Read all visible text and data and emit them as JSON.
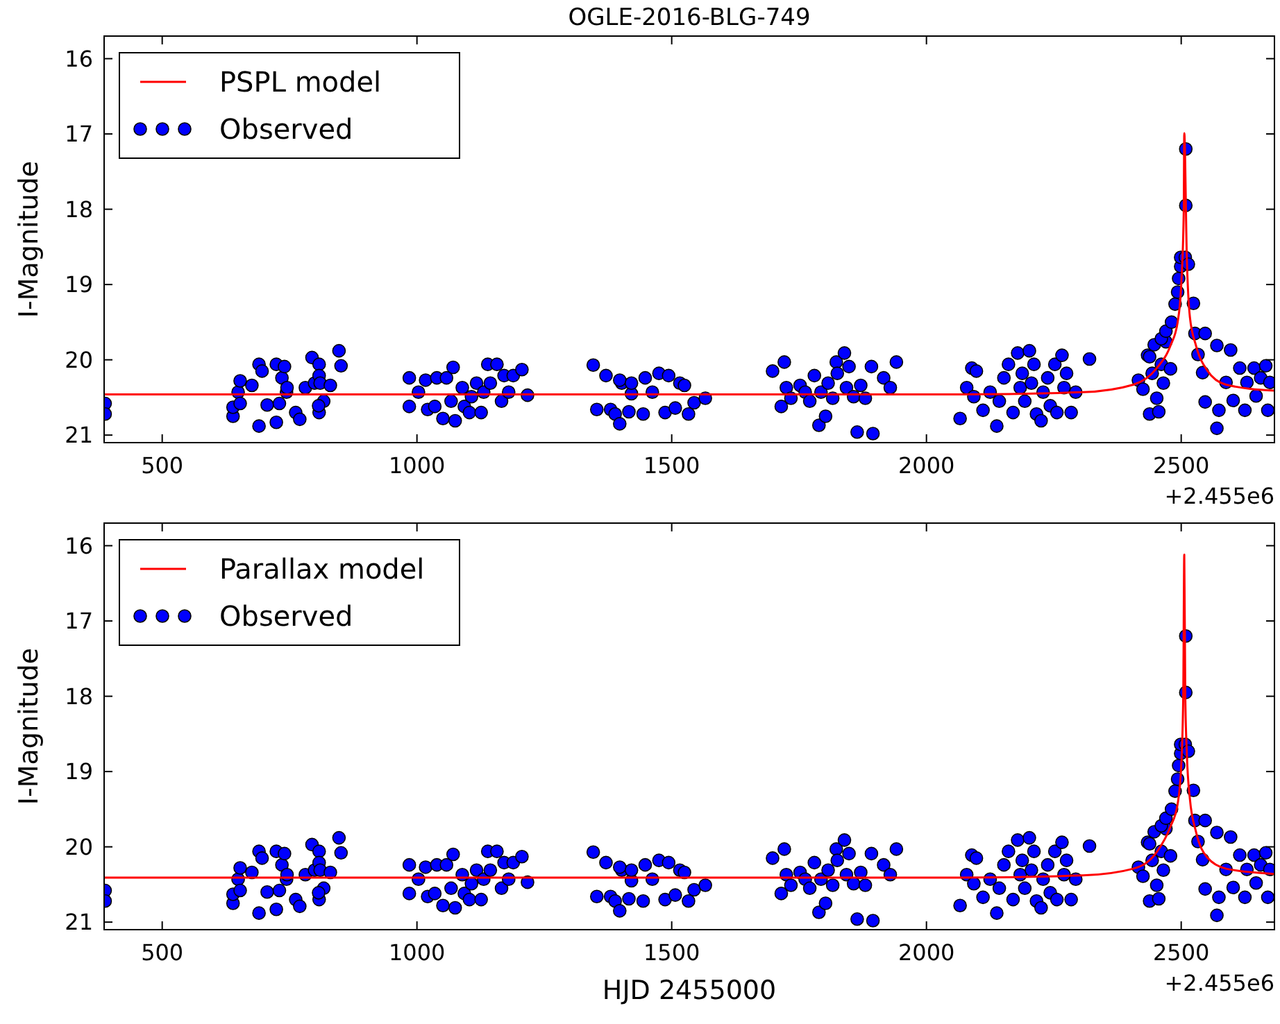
{
  "chart_data": [
    {
      "type": "scatter",
      "title": "OGLE-2016-BLG-749",
      "ylabel": "I-Magnitude",
      "annotations": [
        "+2.455e6"
      ],
      "xlim": [
        386,
        2683
      ],
      "ylim": [
        21.1,
        15.7
      ],
      "xticks": [
        500,
        1000,
        1500,
        2000,
        2500
      ],
      "yticks": [
        16,
        17,
        18,
        19,
        20,
        21
      ],
      "legend": "top left",
      "series": [
        {
          "name": "Observed",
          "type": "scatter",
          "marker": "circle",
          "color": "#0000ff",
          "x": [
            388,
            388,
            639,
            639,
            649,
            653,
            653,
            676,
            690,
            690,
            696,
            706,
            724,
            724,
            735,
            740,
            744,
            730,
            745,
            762,
            770,
            781,
            794,
            799,
            808,
            808,
            808,
            810,
            817,
            830,
            847,
            851,
            807,
            985,
            985,
            1003,
            1017,
            1021,
            1035,
            1039,
            1051,
            1058,
            1067,
            1071,
            1075,
            1089,
            1093,
            1103,
            1107,
            1117,
            1126,
            1131,
            1139,
            1144,
            1157,
            1166,
            1171,
            1180,
            1189,
            1206,
            1217,
            1346,
            1353,
            1371,
            1380,
            1389,
            1398,
            1402,
            1416,
            1421,
            1398,
            1421,
            1448,
            1444,
            1462,
            1475,
            1487,
            1494,
            1507,
            1516,
            1525,
            1533,
            1544,
            1566,
            1698,
            1721,
            1715,
            1725,
            1734,
            1752,
            1762,
            1771,
            1780,
            1789,
            1793,
            1802,
            1807,
            1816,
            1823,
            1825,
            1839,
            1843,
            1848,
            1857,
            1864,
            1871,
            1880,
            1892,
            1895,
            1916,
            1929,
            1941,
            2066,
            2089,
            2098,
            2079,
            2093,
            2111,
            2125,
            2138,
            2143,
            2152,
            2161,
            2170,
            2179,
            2184,
            2188,
            2193,
            2202,
            2206,
            2211,
            2216,
            2225,
            2229,
            2238,
            2243,
            2252,
            2256,
            2266,
            2270,
            2275,
            2284,
            2293,
            2320,
            2416,
            2425,
            2434,
            2438,
            2443,
            2452,
            2456,
            2461,
            2465,
            2470,
            2479,
            2438,
            2447,
            2461,
            2470,
            2481,
            2488,
            2493,
            2495,
            2499,
            2499,
            2508,
            2514,
            2509,
            2509,
            2524,
            2527,
            2547,
            2533,
            2542,
            2547,
            2570,
            2570,
            2574,
            2588,
            2597,
            2602,
            2615,
            2625,
            2629,
            2643,
            2647,
            2656,
            2666,
            2670,
            2674
          ],
          "values": [
            20.58,
            20.72,
            20.75,
            20.63,
            20.43,
            20.58,
            20.28,
            20.34,
            20.06,
            20.88,
            20.15,
            20.6,
            20.06,
            20.83,
            20.24,
            20.09,
            20.43,
            20.58,
            20.37,
            20.7,
            20.79,
            20.37,
            19.97,
            20.31,
            20.06,
            20.21,
            20.7,
            20.31,
            20.55,
            20.34,
            19.88,
            20.08,
            20.61,
            20.24,
            20.62,
            20.43,
            20.27,
            20.66,
            20.62,
            20.24,
            20.78,
            20.24,
            20.55,
            20.1,
            20.81,
            20.37,
            20.62,
            20.7,
            20.49,
            20.31,
            20.7,
            20.43,
            20.06,
            20.31,
            20.06,
            20.55,
            20.21,
            20.43,
            20.21,
            20.13,
            20.47,
            20.07,
            20.66,
            20.21,
            20.66,
            20.72,
            20.85,
            20.31,
            20.69,
            20.45,
            20.27,
            20.31,
            20.24,
            20.72,
            20.43,
            20.18,
            20.7,
            20.21,
            20.64,
            20.31,
            20.34,
            20.72,
            20.57,
            20.51,
            20.15,
            20.03,
            20.62,
            20.37,
            20.51,
            20.34,
            20.43,
            20.55,
            20.21,
            20.87,
            20.43,
            20.75,
            20.31,
            20.51,
            20.03,
            20.18,
            19.91,
            20.37,
            20.09,
            20.49,
            20.96,
            20.34,
            20.51,
            20.09,
            20.98,
            20.24,
            20.37,
            20.03,
            20.78,
            20.11,
            20.15,
            20.37,
            20.49,
            20.67,
            20.43,
            20.88,
            20.55,
            20.24,
            20.06,
            20.7,
            19.91,
            20.37,
            20.18,
            20.55,
            19.88,
            20.31,
            20.06,
            20.72,
            20.81,
            20.43,
            20.24,
            20.61,
            20.06,
            20.7,
            19.94,
            20.37,
            20.18,
            20.7,
            20.43,
            19.99,
            20.27,
            20.39,
            19.94,
            20.72,
            20.18,
            20.51,
            20.69,
            20.06,
            20.31,
            19.76,
            20.12,
            19.96,
            19.8,
            19.72,
            19.62,
            19.5,
            19.26,
            19.1,
            18.92,
            18.76,
            18.64,
            18.64,
            18.73,
            17.95,
            17.2,
            19.25,
            19.65,
            19.65,
            19.93,
            20.17,
            20.56,
            19.81,
            20.91,
            20.67,
            20.3,
            19.87,
            20.54,
            20.11,
            20.67,
            20.3,
            20.11,
            20.48,
            20.24,
            20.08,
            20.67,
            20.3
          ]
        },
        {
          "name": "PSPL model",
          "type": "line",
          "marker": "none",
          "color": "#ff0000",
          "x": [
            386,
            2063,
            2307,
            2406,
            2452,
            2479,
            2493,
            2500,
            2505,
            2506,
            2511,
            2517,
            2529,
            2551,
            2588,
            2683
          ],
          "values": [
            20.46,
            20.46,
            20.43,
            20.33,
            20.11,
            19.81,
            19.5,
            19.01,
            18.02,
            16.99,
            18.64,
            19.43,
            19.81,
            20.14,
            20.33,
            20.41
          ]
        }
      ]
    },
    {
      "type": "scatter",
      "xlabel": "HJD 2455000",
      "ylabel": "I-Magnitude",
      "annotations": [
        "+2.455e6"
      ],
      "xlim": [
        386,
        2683
      ],
      "ylim": [
        21.1,
        15.7
      ],
      "xticks": [
        500,
        1000,
        1500,
        2000,
        2500
      ],
      "yticks": [
        16,
        17,
        18,
        19,
        20,
        21
      ],
      "legend": "top left",
      "series": [
        {
          "name": "Observed",
          "type": "scatter",
          "marker": "circle",
          "color": "#0000ff",
          "x": [
            388,
            388,
            639,
            639,
            649,
            653,
            653,
            676,
            690,
            690,
            696,
            706,
            724,
            724,
            735,
            740,
            744,
            730,
            745,
            762,
            770,
            781,
            794,
            799,
            808,
            808,
            808,
            810,
            817,
            830,
            847,
            851,
            807,
            985,
            985,
            1003,
            1017,
            1021,
            1035,
            1039,
            1051,
            1058,
            1067,
            1071,
            1075,
            1089,
            1093,
            1103,
            1107,
            1117,
            1126,
            1131,
            1139,
            1144,
            1157,
            1166,
            1171,
            1180,
            1189,
            1206,
            1217,
            1346,
            1353,
            1371,
            1380,
            1389,
            1398,
            1402,
            1416,
            1421,
            1398,
            1421,
            1448,
            1444,
            1462,
            1475,
            1487,
            1494,
            1507,
            1516,
            1525,
            1533,
            1544,
            1566,
            1698,
            1721,
            1715,
            1725,
            1734,
            1752,
            1762,
            1771,
            1780,
            1789,
            1793,
            1802,
            1807,
            1816,
            1823,
            1825,
            1839,
            1843,
            1848,
            1857,
            1864,
            1871,
            1880,
            1892,
            1895,
            1916,
            1929,
            1941,
            2066,
            2089,
            2098,
            2079,
            2093,
            2111,
            2125,
            2138,
            2143,
            2152,
            2161,
            2170,
            2179,
            2184,
            2188,
            2193,
            2202,
            2206,
            2211,
            2216,
            2225,
            2229,
            2238,
            2243,
            2252,
            2256,
            2266,
            2270,
            2275,
            2284,
            2293,
            2320,
            2416,
            2425,
            2434,
            2438,
            2443,
            2452,
            2456,
            2461,
            2465,
            2470,
            2479,
            2438,
            2447,
            2461,
            2470,
            2481,
            2488,
            2493,
            2495,
            2499,
            2499,
            2508,
            2514,
            2509,
            2509,
            2524,
            2527,
            2547,
            2533,
            2542,
            2547,
            2570,
            2570,
            2574,
            2588,
            2597,
            2602,
            2615,
            2625,
            2629,
            2643,
            2647,
            2656,
            2666,
            2670,
            2674
          ],
          "values": [
            20.58,
            20.72,
            20.75,
            20.63,
            20.43,
            20.58,
            20.28,
            20.34,
            20.06,
            20.88,
            20.15,
            20.6,
            20.06,
            20.83,
            20.24,
            20.09,
            20.43,
            20.58,
            20.37,
            20.7,
            20.79,
            20.37,
            19.97,
            20.31,
            20.06,
            20.21,
            20.7,
            20.31,
            20.55,
            20.34,
            19.88,
            20.08,
            20.61,
            20.24,
            20.62,
            20.43,
            20.27,
            20.66,
            20.62,
            20.24,
            20.78,
            20.24,
            20.55,
            20.1,
            20.81,
            20.37,
            20.62,
            20.7,
            20.49,
            20.31,
            20.7,
            20.43,
            20.06,
            20.31,
            20.06,
            20.55,
            20.21,
            20.43,
            20.21,
            20.13,
            20.47,
            20.07,
            20.66,
            20.21,
            20.66,
            20.72,
            20.85,
            20.31,
            20.69,
            20.45,
            20.27,
            20.31,
            20.24,
            20.72,
            20.43,
            20.18,
            20.7,
            20.21,
            20.64,
            20.31,
            20.34,
            20.72,
            20.57,
            20.51,
            20.15,
            20.03,
            20.62,
            20.37,
            20.51,
            20.34,
            20.43,
            20.55,
            20.21,
            20.87,
            20.43,
            20.75,
            20.31,
            20.51,
            20.03,
            20.18,
            19.91,
            20.37,
            20.09,
            20.49,
            20.96,
            20.34,
            20.51,
            20.09,
            20.98,
            20.24,
            20.37,
            20.03,
            20.78,
            20.11,
            20.15,
            20.37,
            20.49,
            20.67,
            20.43,
            20.88,
            20.55,
            20.24,
            20.06,
            20.7,
            19.91,
            20.37,
            20.18,
            20.55,
            19.88,
            20.31,
            20.06,
            20.72,
            20.81,
            20.43,
            20.24,
            20.61,
            20.06,
            20.7,
            19.94,
            20.37,
            20.18,
            20.7,
            20.43,
            19.99,
            20.27,
            20.39,
            19.94,
            20.72,
            20.18,
            20.51,
            20.69,
            20.06,
            20.31,
            19.76,
            20.12,
            19.96,
            19.8,
            19.72,
            19.62,
            19.5,
            19.26,
            19.1,
            18.92,
            18.76,
            18.64,
            18.64,
            18.73,
            17.95,
            17.2,
            19.25,
            19.65,
            19.65,
            19.93,
            20.17,
            20.56,
            19.81,
            20.91,
            20.67,
            20.3,
            19.87,
            20.54,
            20.11,
            20.67,
            20.3,
            20.11,
            20.48,
            20.24,
            20.08,
            20.67,
            20.3
          ]
        },
        {
          "name": "Parallax model",
          "type": "line",
          "marker": "none",
          "color": "#ff0000",
          "x": [
            386,
            2063,
            2307,
            2406,
            2452,
            2479,
            2493,
            2500,
            2504,
            2506,
            2508,
            2511,
            2517,
            2529,
            2551,
            2588,
            2683
          ],
          "values": [
            20.41,
            20.41,
            20.38,
            20.29,
            20.07,
            19.73,
            19.43,
            18.93,
            18.0,
            16.12,
            18.0,
            18.75,
            19.36,
            19.8,
            20.14,
            20.29,
            20.36
          ]
        }
      ]
    }
  ]
}
